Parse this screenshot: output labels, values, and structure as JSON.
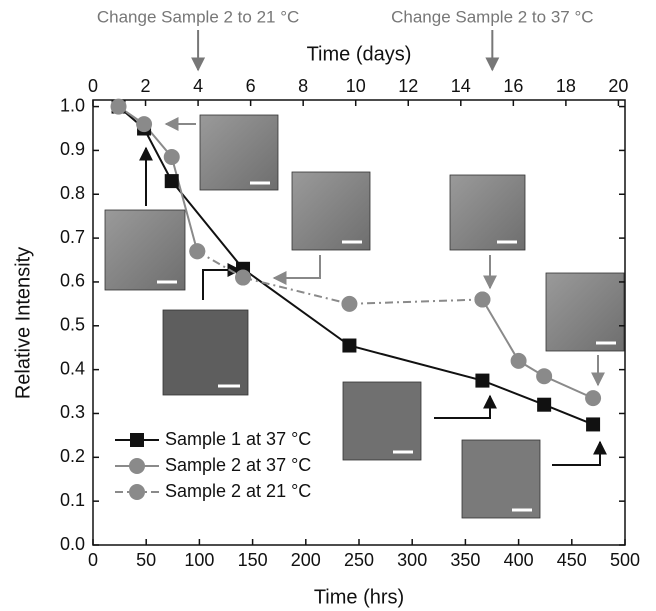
{
  "chart_data": {
    "type": "line",
    "xlabel": "Time (hrs)",
    "x2label": "Time (days)",
    "ylabel": "Relative Intensity",
    "xlim": [
      0,
      500
    ],
    "xticks": [
      0,
      50,
      100,
      150,
      200,
      250,
      300,
      350,
      400,
      450,
      500
    ],
    "x2lim": [
      0,
      20.25
    ],
    "x2ticks": [
      0,
      2,
      4,
      6,
      8,
      10,
      12,
      14,
      16,
      18,
      20
    ],
    "ylim": [
      0,
      1.015
    ],
    "yticks": [
      {
        "value": 0,
        "label": "0.0"
      },
      0.1,
      0.2,
      0.3,
      0.4,
      0.5,
      0.6,
      0.7,
      0.8,
      0.9,
      {
        "value": 1,
        "label": "1.0"
      }
    ],
    "legend": "lower left",
    "annotations": [
      {
        "text": "Change Sample 2 to 21 °C",
        "x2": 4
      },
      {
        "text": "Change Sample 2 to 37 °C",
        "x2": 15.2
      }
    ],
    "series": [
      {
        "name": "Sample 1 at 37 °C",
        "color": "#111111",
        "marker": "square",
        "dash": "solid",
        "x": [
          24,
          48,
          74,
          141,
          241,
          366,
          424,
          470
        ],
        "values": [
          1.0,
          0.95,
          0.83,
          0.63,
          0.455,
          0.375,
          0.32,
          0.275
        ]
      },
      {
        "name": "Sample 2 at 37 °C",
        "color": "#8a8a8a",
        "marker": "circle",
        "dash": "solid",
        "x": [
          24,
          48,
          74,
          98,
          141,
          366,
          400,
          424,
          470
        ],
        "values": [
          1.0,
          0.96,
          0.885,
          0.67,
          null,
          0.56,
          0.42,
          0.385,
          0.335
        ]
      },
      {
        "name": "Sample 2 at 21 °C",
        "color": "#8a8a8a",
        "marker": "circle",
        "dash": "dashdot",
        "x": [
          98,
          141,
          241,
          366
        ],
        "values": [
          0.67,
          0.61,
          0.55,
          0.56
        ]
      }
    ]
  }
}
